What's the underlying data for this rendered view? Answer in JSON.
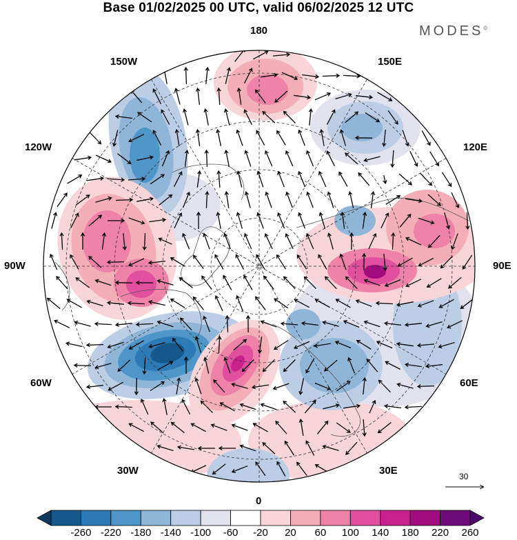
{
  "title": "Base 01/02/2025 00 UTC, valid 06/02/2025 12 UTC",
  "brand": "MODES",
  "brand_mark": "©",
  "longitude_labels": {
    "n180": "180",
    "w150": "150W",
    "e150": "150E",
    "w120": "120W",
    "e120": "120E",
    "w90": "90W",
    "e90": "90E",
    "w60": "60W",
    "e60": "60E",
    "w30": "30W",
    "e30": "30E",
    "s0": "0"
  },
  "reference_vector": {
    "value": "30"
  },
  "colorbar": {
    "ticks": [
      "-260",
      "-220",
      "-180",
      "-140",
      "-100",
      "-60",
      "-20",
      "20",
      "60",
      "100",
      "140",
      "180",
      "220",
      "260"
    ],
    "colors": [
      "#0d3a5c",
      "#14598a",
      "#2c7bb6",
      "#4e96c8",
      "#8fb6d9",
      "#bccde6",
      "#e2e2ef",
      "#ffffff",
      "#f8d5d8",
      "#f4aeb8",
      "#ee82a8",
      "#e0509e",
      "#c8208c",
      "#a00c7c",
      "#6e0a78",
      "#4a0a6a"
    ]
  },
  "anomaly_centers": [
    {
      "label": "negative",
      "value": -260
    },
    {
      "label": "positive",
      "value": 200
    },
    {
      "label": "positive",
      "value": 180
    },
    {
      "label": "positive",
      "value": 140
    },
    {
      "label": "negative",
      "value": -120
    },
    {
      "label": "negative",
      "value": -100
    },
    {
      "label": "positive",
      "value": 120
    }
  ],
  "colors": {
    "coast": "#555555",
    "grid": "#333333",
    "arrow": "#000000"
  }
}
